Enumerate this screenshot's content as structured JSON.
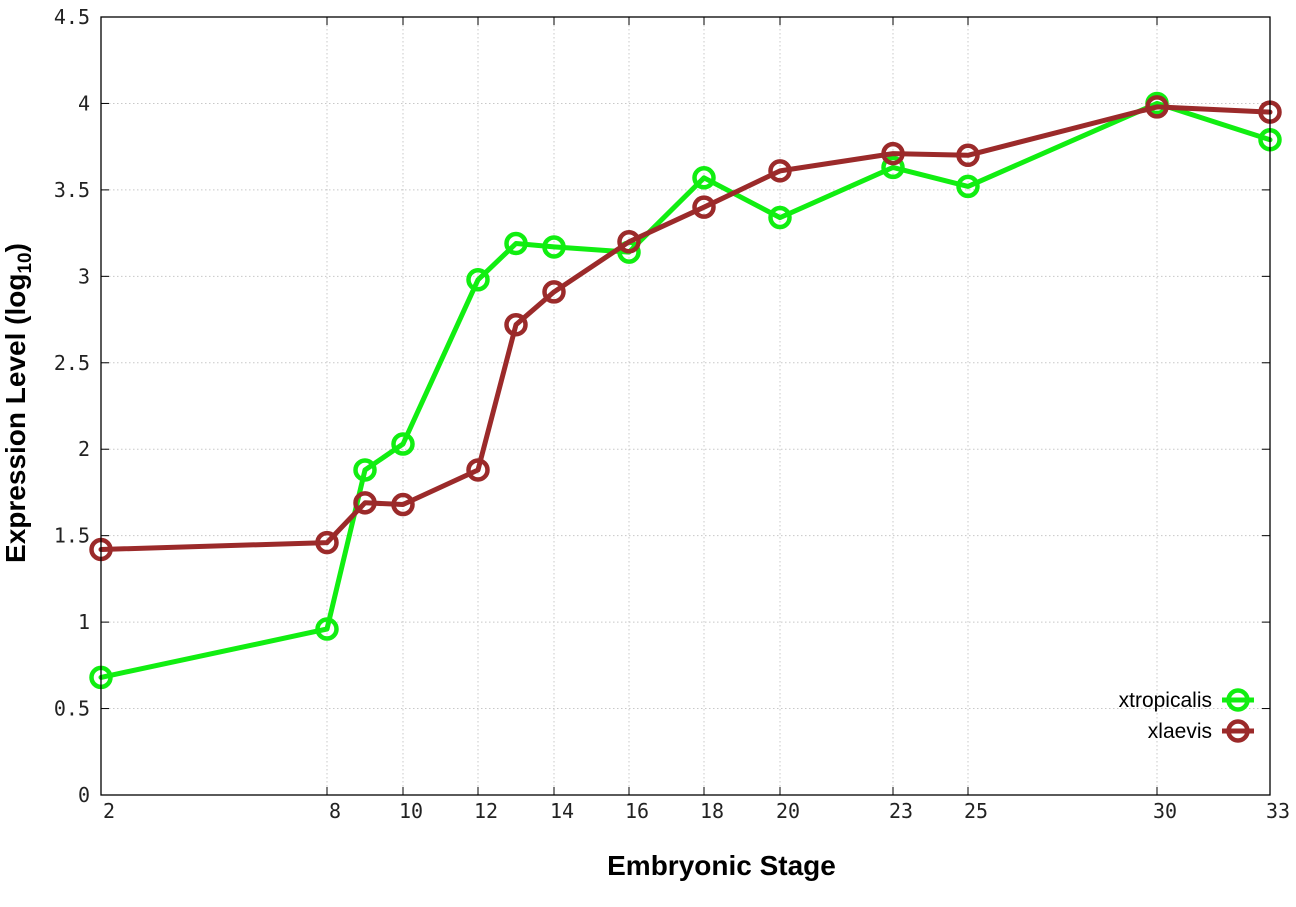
{
  "chart_data": {
    "type": "line",
    "title": "",
    "xlabel": "Embryonic Stage",
    "ylabel_main": "Expression Level (log",
    "ylabel_sub": "10",
    "ylabel_end": ")",
    "xlim": [
      2,
      33
    ],
    "ylim": [
      0,
      4.5
    ],
    "x_ticks": [
      2,
      8,
      10,
      12,
      14,
      16,
      18,
      20,
      23,
      25,
      30,
      33
    ],
    "x_tick_labels": [
      "2",
      "8",
      "10",
      "12",
      "14",
      "16",
      "18",
      "20",
      "23",
      "25",
      "30",
      "33"
    ],
    "y_ticks": [
      0,
      0.5,
      1,
      1.5,
      2,
      2.5,
      3,
      3.5,
      4,
      4.5
    ],
    "y_tick_labels": [
      "0",
      "0.5",
      "1",
      "1.5",
      "2",
      "2.5",
      "3",
      "3.5",
      "4",
      "4.5"
    ],
    "grid": true,
    "legend_position": "bottom-right",
    "series": [
      {
        "name": "xtropicalis",
        "color": "#11ee11",
        "x": [
          2,
          8,
          9,
          10,
          12,
          13,
          14,
          16,
          18,
          20,
          23,
          25,
          30,
          33
        ],
        "y": [
          0.68,
          0.96,
          1.88,
          2.03,
          2.98,
          3.19,
          3.17,
          3.14,
          3.57,
          3.34,
          3.63,
          3.52,
          4.0,
          3.79
        ]
      },
      {
        "name": "xlaevis",
        "color": "#9b2a2a",
        "x": [
          2,
          8,
          9,
          10,
          12,
          13,
          14,
          16,
          18,
          20,
          23,
          25,
          30,
          33
        ],
        "y": [
          1.42,
          1.46,
          1.69,
          1.68,
          1.88,
          2.72,
          2.91,
          3.2,
          3.4,
          3.61,
          3.71,
          3.7,
          3.98,
          3.95
        ]
      }
    ]
  }
}
